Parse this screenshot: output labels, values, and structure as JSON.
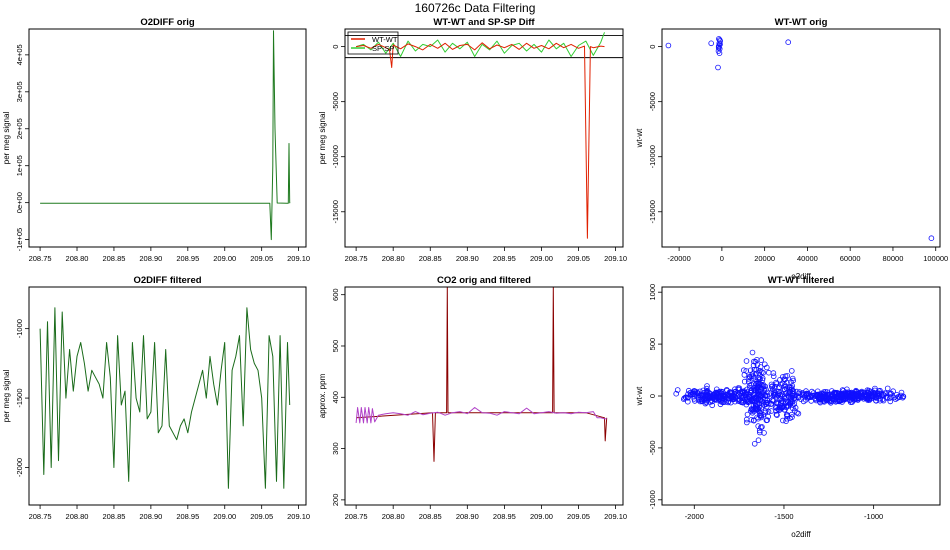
{
  "page_title": "160726c   Data Filtering",
  "chart_data": [
    {
      "id": "p1",
      "type": "line",
      "title": "O2DIFF orig",
      "xlabel": "",
      "ylabel": "per meg signal",
      "xlim": [
        208.735,
        209.11
      ],
      "ylim": [
        -120000,
        470000
      ],
      "xticks": [
        208.75,
        208.8,
        208.85,
        208.9,
        208.95,
        209.0,
        209.05,
        209.1
      ],
      "xtick_labels": [
        "208.75",
        "208.80",
        "208.85",
        "208.90",
        "208.95",
        "209.00",
        "209.05",
        "209.10"
      ],
      "yticks": [
        -100000,
        0,
        100000,
        200000,
        300000,
        400000
      ],
      "ytick_labels": [
        "-1e+05",
        "0e+00",
        "1e+05",
        "2e+05",
        "3e+05",
        "4e+05"
      ],
      "series": [
        {
          "color": "#1f7a1f",
          "x": [
            208.75,
            209.061,
            209.063,
            209.065,
            209.066,
            209.068,
            209.071,
            209.084,
            209.086,
            209.087,
            209.088,
            209.0885
          ],
          "y": [
            -1500,
            -1500,
            -100000,
            100000,
            465000,
            200000,
            -1000,
            -1500,
            -1500,
            160000,
            0,
            -1500
          ]
        }
      ]
    },
    {
      "id": "p2",
      "type": "line",
      "title": "WT-WT and SP-SP Diff",
      "xlabel": "",
      "ylabel": "per meg signal",
      "xlim": [
        208.735,
        209.11
      ],
      "ylim": [
        -18200,
        1600
      ],
      "xticks": [
        208.75,
        208.8,
        208.85,
        208.9,
        208.95,
        209.0,
        209.05,
        209.1
      ],
      "xtick_labels": [
        "208.75",
        "208.80",
        "208.85",
        "208.90",
        "208.95",
        "209.00",
        "209.05",
        "209.10"
      ],
      "yticks": [
        -15000,
        -10000,
        -5000,
        0
      ],
      "ytick_labels": [
        "-15000",
        "-10000",
        "-5000",
        "0"
      ],
      "hlines": [
        1000,
        -1000
      ],
      "legend": {
        "position": "top-left",
        "entries": [
          {
            "label": "WT-WT",
            "color": "#e02000"
          },
          {
            "label": "SP-SP",
            "color": "#33cc33"
          }
        ]
      },
      "series": [
        {
          "name": "SP-SP",
          "color": "#33cc33",
          "x": [
            208.75,
            208.76,
            208.77,
            208.78,
            208.79,
            208.8,
            208.81,
            208.82,
            208.83,
            208.84,
            208.85,
            208.86,
            208.87,
            208.88,
            208.89,
            208.9,
            208.91,
            208.92,
            208.93,
            208.94,
            208.95,
            208.96,
            208.97,
            208.98,
            208.99,
            209.0,
            209.01,
            209.02,
            209.03,
            209.04,
            209.05,
            209.06,
            209.07,
            209.08,
            209.085
          ],
          "y": [
            0,
            200,
            -300,
            400,
            -600,
            300,
            -900,
            500,
            -400,
            200,
            0,
            600,
            -500,
            300,
            -200,
            400,
            -900,
            200,
            -300,
            500,
            -600,
            100,
            300,
            -400,
            200,
            -500,
            600,
            -200,
            300,
            -900,
            100,
            500,
            -800,
            400,
            1300
          ]
        },
        {
          "name": "WT-WT",
          "color": "#e02000",
          "x": [
            208.75,
            208.76,
            208.77,
            208.78,
            208.79,
            208.795,
            208.798,
            208.8,
            208.81,
            208.82,
            208.83,
            208.84,
            208.85,
            208.86,
            208.87,
            208.88,
            208.89,
            208.9,
            208.91,
            208.92,
            208.93,
            208.94,
            208.95,
            208.96,
            208.97,
            208.98,
            208.99,
            209.0,
            209.01,
            209.02,
            209.03,
            209.04,
            209.05,
            209.058,
            209.062,
            209.066,
            209.07,
            209.08,
            209.085
          ],
          "y": [
            0,
            100,
            -150,
            200,
            -100,
            -250,
            -1900,
            150,
            -200,
            250,
            0,
            -300,
            200,
            -150,
            300,
            -250,
            100,
            200,
            -300,
            350,
            -200,
            150,
            -100,
            200,
            -250,
            300,
            -150,
            100,
            -200,
            300,
            -100,
            200,
            -150,
            50,
            -17400,
            0,
            -100,
            50,
            0
          ]
        }
      ]
    },
    {
      "id": "p3",
      "type": "scatter",
      "title": "WT-WT orig",
      "xlabel": "o2diff",
      "ylabel": "wt-wt",
      "xlim": [
        -28000,
        102000
      ],
      "ylim": [
        -18200,
        1600
      ],
      "xticks": [
        -20000,
        0,
        20000,
        40000,
        60000,
        80000,
        100000
      ],
      "xtick_labels": [
        "-20000",
        "0",
        "20000",
        "40000",
        "60000",
        "80000",
        "100000"
      ],
      "yticks": [
        -15000,
        -10000,
        -5000,
        0
      ],
      "ytick_labels": [
        "-15000",
        "-10000",
        "-5000",
        "0"
      ],
      "series": [
        {
          "color": "#1010ff",
          "x": [
            -25000,
            -1500,
            -1200,
            -1000,
            -800,
            -1600,
            -1400,
            -900,
            -1100,
            -1300,
            -5000,
            -1800,
            31000,
            98000,
            -1500,
            -1000
          ],
          "y": [
            100,
            0,
            300,
            -200,
            500,
            -400,
            700,
            200,
            -600,
            100,
            300,
            -1900,
            400,
            -17400,
            -100,
            600
          ]
        }
      ]
    },
    {
      "id": "p4",
      "type": "line",
      "title": "O2DIFF filtered",
      "xlabel": "",
      "ylabel": "per meg signal",
      "xlim": [
        208.735,
        209.11
      ],
      "ylim": [
        -2270,
        -700
      ],
      "xticks": [
        208.75,
        208.8,
        208.85,
        208.9,
        208.95,
        209.0,
        209.05,
        209.1
      ],
      "xtick_labels": [
        "208.75",
        "208.80",
        "208.85",
        "208.90",
        "208.95",
        "209.00",
        "209.05",
        "209.10"
      ],
      "yticks": [
        -2000,
        -1500,
        -1000
      ],
      "ytick_labels": [
        "-2000",
        "-1500",
        "-1000"
      ],
      "series": [
        {
          "color": "#1a6b1a",
          "x": [
            208.75,
            208.755,
            208.76,
            208.765,
            208.77,
            208.775,
            208.78,
            208.785,
            208.79,
            208.795,
            208.8,
            208.805,
            208.81,
            208.815,
            208.82,
            208.825,
            208.83,
            208.835,
            208.84,
            208.845,
            208.85,
            208.855,
            208.86,
            208.865,
            208.87,
            208.875,
            208.88,
            208.885,
            208.89,
            208.895,
            208.9,
            208.905,
            208.91,
            208.915,
            208.92,
            208.925,
            208.93,
            208.935,
            208.94,
            208.945,
            208.95,
            208.955,
            208.96,
            208.965,
            208.97,
            208.975,
            208.98,
            208.985,
            208.99,
            208.995,
            209.0,
            209.005,
            209.01,
            209.015,
            209.02,
            209.025,
            209.03,
            209.035,
            209.04,
            209.045,
            209.05,
            209.055,
            209.06,
            209.065,
            209.07,
            209.075,
            209.08,
            209.085,
            209.088
          ],
          "y": [
            -1000,
            -2050,
            -950,
            -2000,
            -850,
            -1950,
            -880,
            -1500,
            -1150,
            -1450,
            -1200,
            -1100,
            -1250,
            -1450,
            -1300,
            -1350,
            -1400,
            -1500,
            -1100,
            -1350,
            -2000,
            -1050,
            -1550,
            -1450,
            -2100,
            -1100,
            -1500,
            -1600,
            -1050,
            -1650,
            -1600,
            -1100,
            -1750,
            -1700,
            -1150,
            -1700,
            -1750,
            -1800,
            -1700,
            -1650,
            -1750,
            -1600,
            -1500,
            -1400,
            -1300,
            -1500,
            -1200,
            -1400,
            -1550,
            -1300,
            -1100,
            -2150,
            -1300,
            -1200,
            -1050,
            -1700,
            -850,
            -1150,
            -1250,
            -1300,
            -1500,
            -2150,
            -1050,
            -1200,
            -2100,
            -1050,
            -2150,
            -1100,
            -1550
          ]
        }
      ]
    },
    {
      "id": "p5",
      "type": "line",
      "title": "CO2 orig and filtered",
      "xlabel": "",
      "ylabel": "approx. ppm",
      "xlim": [
        208.735,
        209.11
      ],
      "ylim": [
        190,
        615
      ],
      "xticks": [
        208.75,
        208.8,
        208.85,
        208.9,
        208.95,
        209.0,
        209.05,
        209.1
      ],
      "xtick_labels": [
        "208.75",
        "208.80",
        "208.85",
        "208.90",
        "208.95",
        "209.00",
        "209.05",
        "209.10"
      ],
      "yticks": [
        200,
        300,
        400,
        500,
        600
      ],
      "ytick_labels": [
        "200",
        "300",
        "400",
        "500",
        "600"
      ],
      "series": [
        {
          "color": "#8b0000",
          "x": [
            208.75,
            208.853,
            208.855,
            208.857,
            208.86,
            208.872,
            208.873,
            208.874,
            208.88,
            208.9,
            209.015,
            209.016,
            209.017,
            209.03,
            209.06,
            209.085,
            209.086,
            209.088
          ],
          "y": [
            360,
            370,
            275,
            370,
            370,
            370,
            615,
            370,
            370,
            370,
            370,
            615,
            370,
            370,
            370,
            360,
            315,
            360
          ]
        },
        {
          "color": "#b041c8",
          "x": [
            208.75,
            208.752,
            208.755,
            208.757,
            208.76,
            208.762,
            208.765,
            208.767,
            208.77,
            208.772,
            208.775,
            208.78,
            208.79,
            208.8,
            208.81,
            208.82,
            208.83,
            208.84,
            208.85,
            208.86,
            208.87,
            208.88,
            208.89,
            208.9,
            208.91,
            208.92,
            208.93,
            208.94,
            208.95,
            208.96,
            208.97,
            208.98,
            208.99,
            209.0,
            209.01,
            209.02,
            209.03,
            209.04,
            209.05,
            209.06,
            209.07,
            209.075,
            209.08,
            209.085,
            209.088
          ],
          "y": [
            350,
            380,
            350,
            380,
            350,
            380,
            350,
            380,
            350,
            378,
            352,
            365,
            368,
            370,
            368,
            365,
            372,
            366,
            369,
            371,
            365,
            370,
            372,
            368,
            380,
            370,
            369,
            365,
            372,
            370,
            368,
            379,
            368,
            370,
            372,
            369,
            370,
            368,
            371,
            370,
            372,
            360,
            360,
            358,
            358
          ]
        }
      ]
    },
    {
      "id": "p6",
      "type": "scatter",
      "title": "WT-WT filtered",
      "xlabel": "o2diff",
      "ylabel": "wt-wt",
      "xlim": [
        -2180,
        -630
      ],
      "ylim": [
        -1050,
        1050
      ],
      "xticks": [
        -2000,
        -1500,
        -1000
      ],
      "xtick_labels": [
        "-2000",
        "-1500",
        "-1000"
      ],
      "yticks": [
        -1000,
        -500,
        0,
        500,
        1000
      ],
      "ytick_labels": [
        "-1000",
        "-500",
        "0",
        "500",
        "1000"
      ],
      "point_count": 900,
      "series": [
        {
          "color": "#1010ff"
        }
      ]
    }
  ]
}
